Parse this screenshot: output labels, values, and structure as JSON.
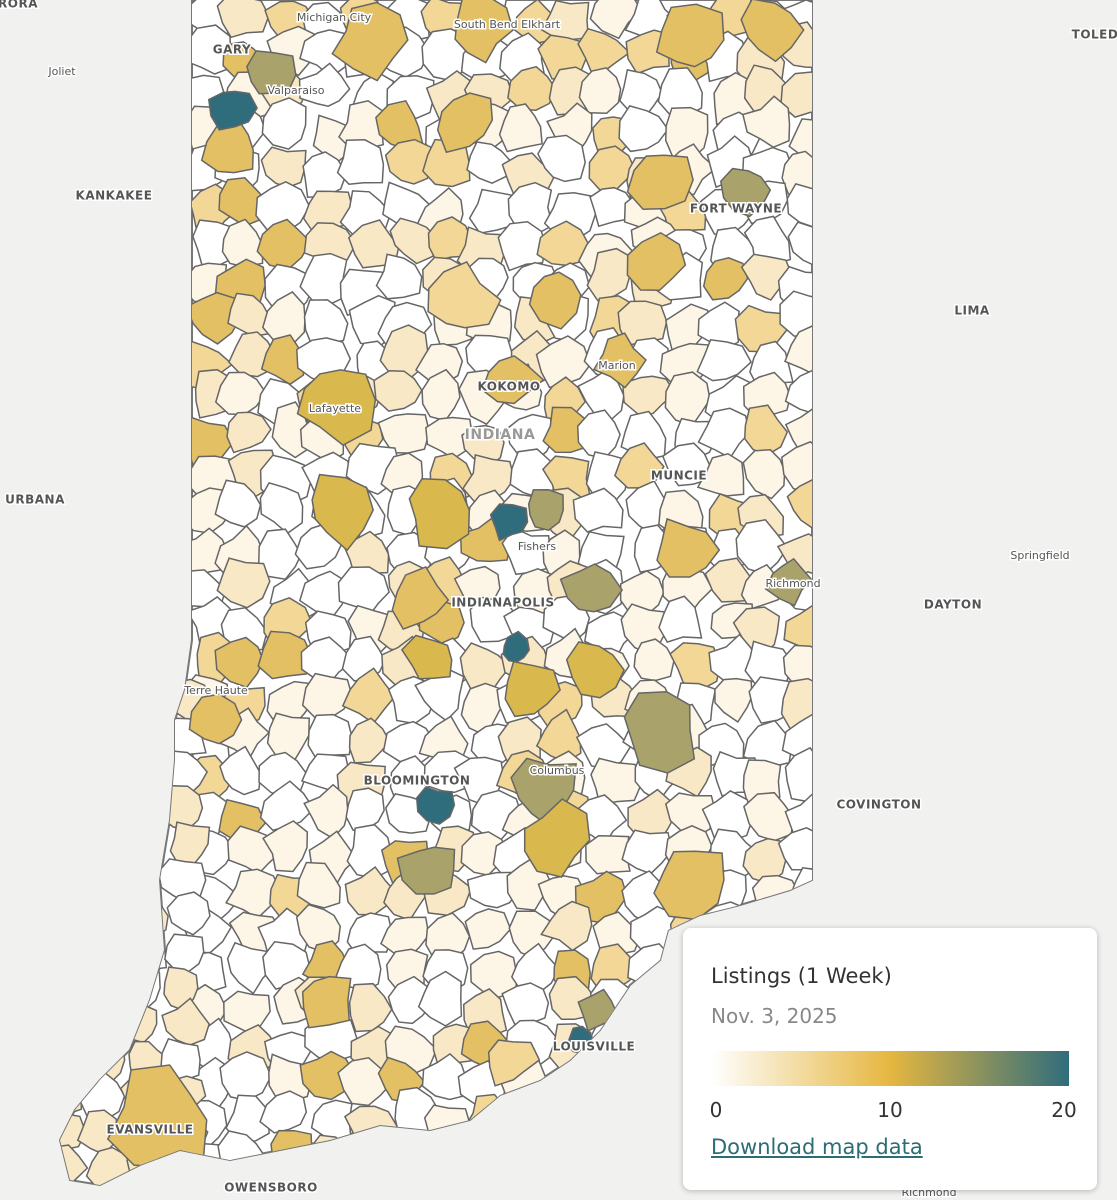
{
  "map": {
    "places": [
      "RORA",
      "Michigan City",
      "South Bend Elkhart",
      "GARY",
      "Valparaiso",
      "Joliet",
      "TOLED",
      "KANKAKEE",
      "FORT WAYNE",
      "LIMA",
      "Marion",
      "KOKOMO",
      "Lafayette",
      "INDIANA",
      "MUNCIE",
      "URBANA",
      "Fishers",
      "Springfield",
      "Richmond",
      "INDIANAPOLIS",
      "DAYTON",
      "Terre Haute",
      "Columbus",
      "BLOOMINGTON",
      "COVINGTON",
      "LOUISVILLE",
      "EVANSVILLE",
      "OWENSBORO",
      "Richmond"
    ]
  },
  "legend": {
    "title": "Listings (1 Week)",
    "subtitle": "Nov. 3, 2025",
    "ticks": [
      0,
      10,
      20
    ],
    "colors": [
      "#ffffff",
      "#e6b740",
      "#2f6d7c"
    ],
    "link": "Download map data"
  }
}
